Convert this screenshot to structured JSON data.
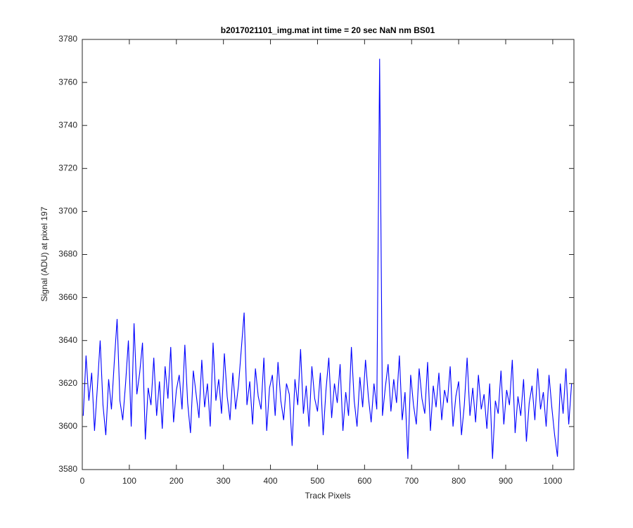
{
  "chart_data": {
    "type": "line",
    "title": "b2017021101_img.mat int time = 20 sec  NaN nm BS01",
    "x_label": "Track Pixels",
    "y_label": "Signal (ADU) at pixel 197",
    "xlim": [
      0,
      1045
    ],
    "ylim": [
      3580,
      3780
    ],
    "xticks": [
      0,
      100,
      200,
      300,
      400,
      500,
      600,
      700,
      800,
      900,
      1000
    ],
    "yticks": [
      3580,
      3600,
      3620,
      3640,
      3660,
      3680,
      3700,
      3720,
      3740,
      3760,
      3780
    ],
    "x": [
      2,
      8,
      14,
      20,
      26,
      32,
      38,
      44,
      50,
      56,
      62,
      68,
      74,
      80,
      86,
      92,
      98,
      104,
      110,
      116,
      122,
      128,
      134,
      140,
      146,
      152,
      158,
      164,
      170,
      176,
      182,
      188,
      194,
      200,
      206,
      212,
      218,
      224,
      230,
      236,
      242,
      248,
      254,
      260,
      266,
      272,
      278,
      284,
      290,
      296,
      302,
      308,
      314,
      320,
      326,
      332,
      338,
      344,
      350,
      356,
      362,
      368,
      374,
      380,
      386,
      392,
      398,
      404,
      410,
      416,
      422,
      428,
      434,
      440,
      446,
      452,
      458,
      464,
      470,
      476,
      482,
      488,
      494,
      500,
      506,
      512,
      518,
      524,
      530,
      536,
      542,
      548,
      554,
      560,
      566,
      572,
      578,
      584,
      590,
      596,
      602,
      608,
      614,
      620,
      626,
      632,
      638,
      644,
      650,
      656,
      662,
      668,
      674,
      680,
      686,
      692,
      698,
      704,
      710,
      716,
      722,
      728,
      734,
      740,
      746,
      752,
      758,
      764,
      770,
      776,
      782,
      788,
      794,
      800,
      806,
      812,
      818,
      824,
      830,
      836,
      842,
      848,
      854,
      860,
      866,
      872,
      878,
      884,
      890,
      896,
      902,
      908,
      914,
      920,
      926,
      932,
      938,
      944,
      950,
      956,
      962,
      968,
      974,
      980,
      986,
      992,
      998,
      1004,
      1010,
      1016,
      1022,
      1028,
      1034,
      1040
    ],
    "series": [
      {
        "color": "#0000ff",
        "values": [
          3605,
          3633,
          3612,
          3625,
          3598,
          3618,
          3640,
          3610,
          3596,
          3622,
          3608,
          3630,
          3650,
          3612,
          3603,
          3620,
          3640,
          3600,
          3648,
          3615,
          3625,
          3639,
          3594,
          3618,
          3610,
          3632,
          3605,
          3621,
          3599,
          3628,
          3613,
          3637,
          3602,
          3617,
          3624,
          3608,
          3638,
          3611,
          3597,
          3626,
          3615,
          3604,
          3631,
          3609,
          3620,
          3600,
          3639,
          3612,
          3622,
          3606,
          3634,
          3614,
          3603,
          3625,
          3608,
          3619,
          3636,
          3653,
          3610,
          3621,
          3601,
          3627,
          3614,
          3608,
          3632,
          3598,
          3618,
          3624,
          3605,
          3630,
          3612,
          3603,
          3620,
          3615,
          3591,
          3622,
          3610,
          3636,
          3606,
          3619,
          3600,
          3628,
          3613,
          3607,
          3625,
          3596,
          3617,
          3632,
          3604,
          3620,
          3611,
          3629,
          3598,
          3616,
          3605,
          3637,
          3612,
          3600,
          3623,
          3609,
          3631,
          3614,
          3602,
          3620,
          3608,
          3771,
          3605,
          3618,
          3629,
          3607,
          3622,
          3611,
          3633,
          3603,
          3616,
          3585,
          3624,
          3610,
          3601,
          3627,
          3613,
          3606,
          3630,
          3598,
          3619,
          3609,
          3625,
          3603,
          3617,
          3611,
          3628,
          3600,
          3614,
          3621,
          3596,
          3610,
          3632,
          3605,
          3618,
          3602,
          3624,
          3608,
          3615,
          3599,
          3620,
          3585,
          3612,
          3606,
          3626,
          3601,
          3617,
          3610,
          3631,
          3597,
          3614,
          3605,
          3622,
          3593,
          3611,
          3619,
          3603,
          3627,
          3608,
          3616,
          3600,
          3624,
          3609,
          3596,
          3586,
          3620,
          3606,
          3627,
          3601,
          3620
        ]
      }
    ]
  }
}
